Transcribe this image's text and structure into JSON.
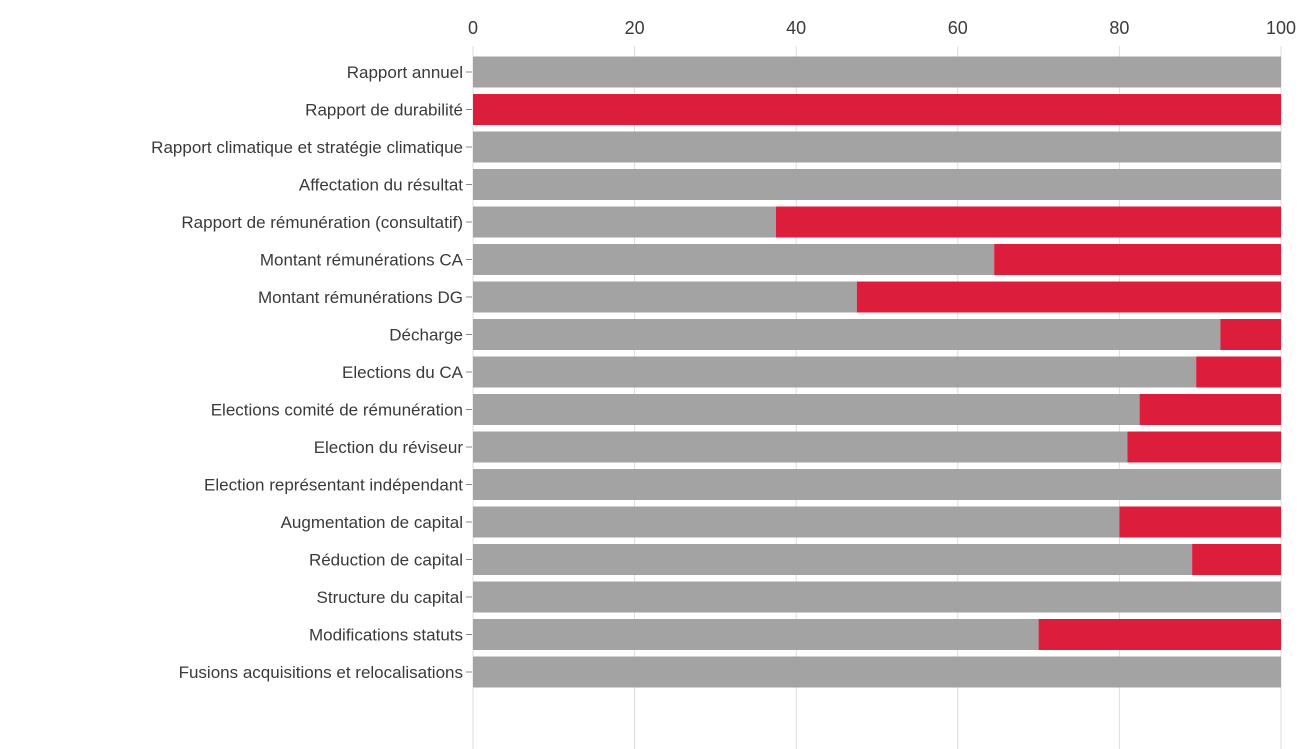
{
  "chart_data": {
    "type": "bar",
    "orientation": "horizontal",
    "stacked": true,
    "xlim": [
      0,
      100
    ],
    "x_ticks": [
      "0",
      "20",
      "40",
      "60",
      "80",
      "100"
    ],
    "x_tick_values": [
      0,
      20,
      40,
      60,
      80,
      100
    ],
    "x_axis_position": "top",
    "grid": true,
    "legend": "none",
    "categories": [
      "Rapport annuel",
      "Rapport de durabilité",
      "Rapport climatique et stratégie climatique",
      "Affectation du résultat",
      "Rapport de rémunération (consultatif)",
      "Montant rémunérations CA",
      "Montant rémunérations DG",
      "Décharge",
      "Elections du CA",
      "Elections comité de rémunération",
      "Election du réviseur",
      "Election représentant indépendant",
      "Augmentation de capital",
      "Réduction de capital",
      "Structure du capital",
      "Modifications statuts",
      "Fusions acquisitions et relocalisations"
    ],
    "series": [
      {
        "color": "#a3a3a3",
        "values": [
          100,
          0,
          100,
          100,
          37.5,
          64.5,
          47.5,
          92.5,
          89.5,
          82.5,
          81,
          100,
          80,
          89,
          100,
          70,
          100
        ]
      },
      {
        "color": "#dc1e3c",
        "values": [
          0,
          100,
          0,
          0,
          62.5,
          35.5,
          52.5,
          7.5,
          10.5,
          17.5,
          19,
          0,
          20,
          11,
          0,
          30,
          0
        ]
      }
    ]
  }
}
